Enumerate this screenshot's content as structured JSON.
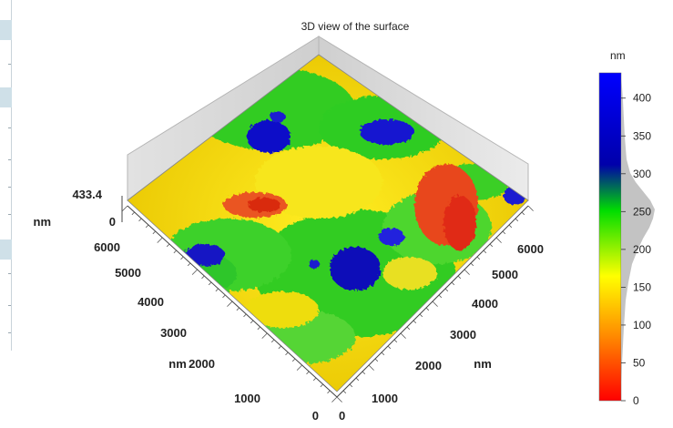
{
  "title": "3D view of the surface",
  "surface": {
    "z_max_label": "433.4",
    "z_min_label": "0",
    "z_unit": "nm",
    "left_axis": {
      "unit": "nm",
      "ticks": [
        "6000",
        "5000",
        "4000",
        "3000",
        "2000",
        "1000",
        "0"
      ]
    },
    "right_axis": {
      "unit": "nm",
      "ticks": [
        "6000",
        "5000",
        "4000",
        "3000",
        "2000",
        "1000",
        "0"
      ]
    }
  },
  "colorbar": {
    "unit": "nm",
    "ticks": [
      "400",
      "350",
      "300",
      "250",
      "200",
      "150",
      "100",
      "50",
      "0"
    ],
    "colors": [
      "#ff0000",
      "#ff8c00",
      "#ffff00",
      "#00dd00",
      "#0000aa",
      "#0000ff"
    ],
    "range": [
      0,
      433.4
    ]
  },
  "icons": {
    "histogram": "height-histogram"
  }
}
